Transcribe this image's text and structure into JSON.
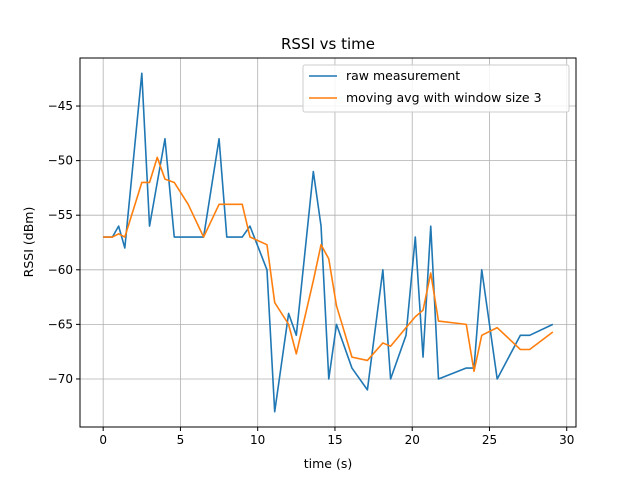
{
  "chart_data": {
    "type": "line",
    "title": "RSSI vs time",
    "xlabel": "time (s)",
    "ylabel": "RSSI (dBm)",
    "xlim": [
      -1.5,
      30.6
    ],
    "ylim": [
      -74.4,
      -40.6
    ],
    "xticks": [
      0,
      5,
      10,
      15,
      20,
      25,
      30
    ],
    "yticks": [
      -70,
      -65,
      -60,
      -55,
      -50,
      -45
    ],
    "grid": true,
    "legend_position": "top-right",
    "series": [
      {
        "name": "raw measurement",
        "color": "#1f77b4",
        "x": [
          0,
          0.6,
          1.0,
          1.4,
          2.5,
          3.0,
          4.0,
          4.6,
          6.5,
          7.5,
          8.0,
          9.0,
          9.5,
          10.6,
          11.1,
          12.0,
          12.5,
          13.6,
          14.1,
          14.6,
          15.1,
          16.1,
          17.1,
          18.1,
          18.6,
          19.6,
          20.2,
          20.7,
          21.2,
          21.7,
          23.5,
          24.0,
          24.5,
          25.5,
          27.0,
          27.6,
          29.1
        ],
        "y": [
          -57,
          -57,
          -56,
          -58,
          -42,
          -56,
          -48,
          -57,
          -57,
          -48,
          -57,
          -57,
          -56,
          -60,
          -73,
          -64,
          -66,
          -51,
          -56,
          -70,
          -65,
          -69,
          -71,
          -60,
          -70,
          -66,
          -57,
          -68,
          -56,
          -70,
          -69,
          -69,
          -60,
          -70,
          -66,
          -66,
          -65
        ]
      },
      {
        "name": "moving avg with window size 3",
        "color": "#ff7f0e",
        "x": [
          0,
          0.6,
          1.0,
          1.4,
          2.5,
          3.0,
          3.5,
          4.0,
          4.6,
          5.5,
          6.5,
          7.5,
          8.0,
          9.0,
          9.5,
          10.6,
          11.1,
          12.0,
          12.5,
          13.6,
          14.1,
          14.6,
          15.1,
          16.1,
          17.1,
          18.1,
          18.6,
          19.6,
          20.2,
          20.7,
          21.2,
          21.7,
          23.5,
          24.0,
          24.5,
          25.5,
          27.0,
          27.6,
          29.1
        ],
        "y": [
          -57,
          -57,
          -56.7,
          -57,
          -52,
          -52,
          -49.7,
          -51.7,
          -52,
          -54,
          -57,
          -54,
          -54,
          -54,
          -57,
          -57.7,
          -63,
          -65,
          -67.7,
          -61,
          -57.7,
          -59,
          -63.3,
          -68,
          -68.3,
          -66.7,
          -67,
          -65.3,
          -64.3,
          -63.7,
          -60.3,
          -64.7,
          -65,
          -69.3,
          -66,
          -65.3,
          -67.3,
          -67.3,
          -65.7
        ]
      }
    ]
  }
}
